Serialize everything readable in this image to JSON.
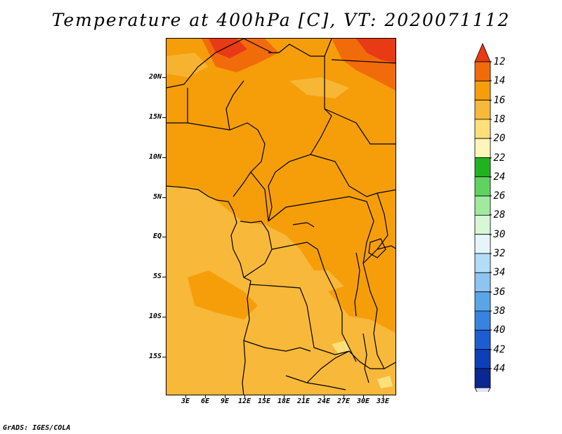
{
  "title": "Temperature at 400hPa [C], VT: 2020071112",
  "credit": "GrADS: IGES/COLA",
  "latitude_ticks": [
    "20N",
    "15N",
    "10N",
    "5N",
    "EQ",
    "5S",
    "10S",
    "15S"
  ],
  "longitude_ticks": [
    "3E",
    "6E",
    "9E",
    "12E",
    "15E",
    "18E",
    "21E",
    "24E",
    "27E",
    "30E",
    "33E"
  ],
  "colorbar": {
    "labels": [
      "-12",
      "-14",
      "-16",
      "-18",
      "-20",
      "-22",
      "-24",
      "-26",
      "-28",
      "-30",
      "-32",
      "-34",
      "-36",
      "-38",
      "-40",
      "-42",
      "-44"
    ],
    "colors": [
      "#e83a14",
      "#f26b0a",
      "#f59e0a",
      "#f8b83a",
      "#fde07a",
      "#fef5b8",
      "#1fb31f",
      "#5fd35f",
      "#a0eaa0",
      "#d6f8d6",
      "#e6f5fb",
      "#b4dcf7",
      "#8cc5f1",
      "#5aa5e8",
      "#3783e0",
      "#1c5ed2",
      "#0d40b8",
      "#0a2792",
      "#07166a"
    ],
    "top_arrow_color": "#e83a14",
    "bottom_arrow_color": "#e0e4f8"
  },
  "map": {
    "dominant_fill": "#f59e0a",
    "southern_fill": "#f8b83a",
    "hot_fill": "#e83a14",
    "warm_fill": "#f26b0a",
    "cool_fill": "#fde07a"
  }
}
